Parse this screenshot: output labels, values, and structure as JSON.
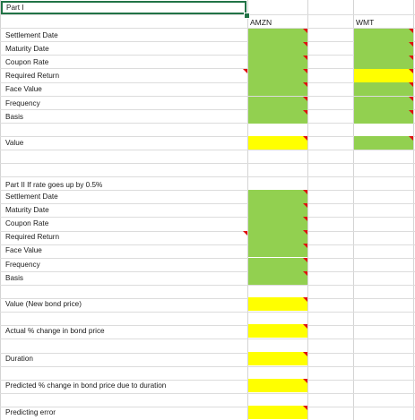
{
  "title_cell": "Part I",
  "columns": {
    "amzn": "AMZN",
    "wmt": "WMT"
  },
  "part1": {
    "labels": [
      "Settlement Date",
      "Maturity Date",
      "Coupon Rate",
      "Required Return",
      "Face Value",
      "Frequency",
      "Basis"
    ],
    "value_label": "Value"
  },
  "part2": {
    "heading": "Part II If rate goes up by 0.5%",
    "labels": [
      "Settlement Date",
      "Maturity Date",
      "Coupon Rate",
      "Required Return",
      "Face Value",
      "Frequency",
      "Basis"
    ],
    "outputs": [
      "Value (New bond price)",
      "Actual % change in bond price",
      "Duration",
      "Predicted % change in bond price due to duration",
      "Predicting error"
    ]
  },
  "colors": {
    "input_green": "#92d050",
    "output_yellow": "#ffff00",
    "comment_flag": "#e01010",
    "selection": "#217346"
  }
}
